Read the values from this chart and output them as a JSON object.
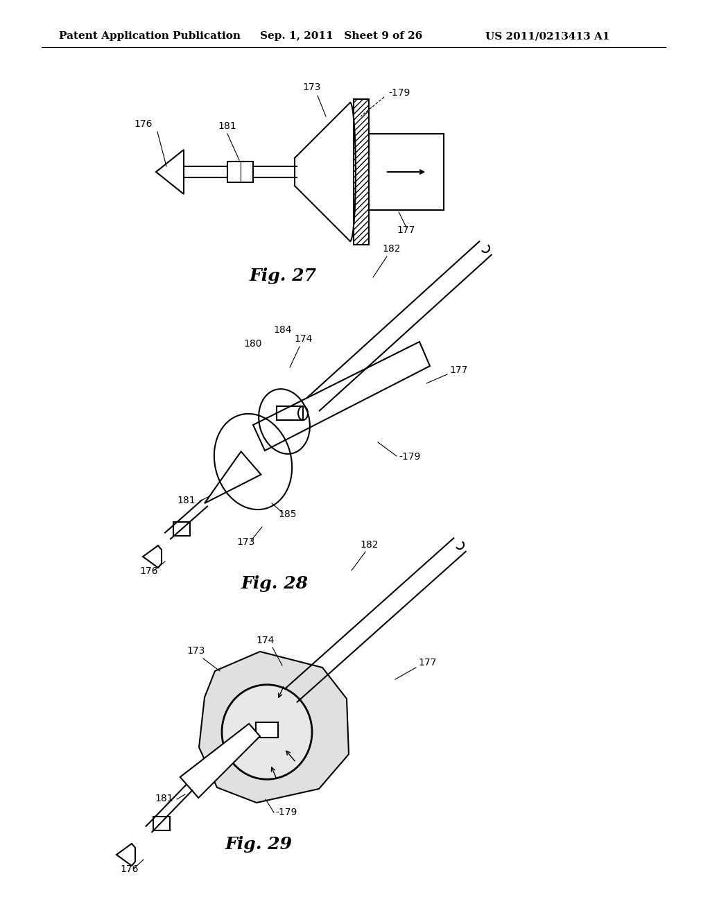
{
  "background_color": "#ffffff",
  "header_left": "Patent Application Publication",
  "header_center": "Sep. 1, 2011   Sheet 9 of 26",
  "header_right": "US 2011/0213413 A1",
  "header_fontsize": 11,
  "fig27_caption": "Fig. 27",
  "fig28_caption": "Fig. 28",
  "fig29_caption": "Fig. 29",
  "caption_fontsize": 18,
  "label_fontsize": 10,
  "line_color": "#000000",
  "fig_width": 10.24,
  "fig_height": 13.2,
  "dpi": 100
}
